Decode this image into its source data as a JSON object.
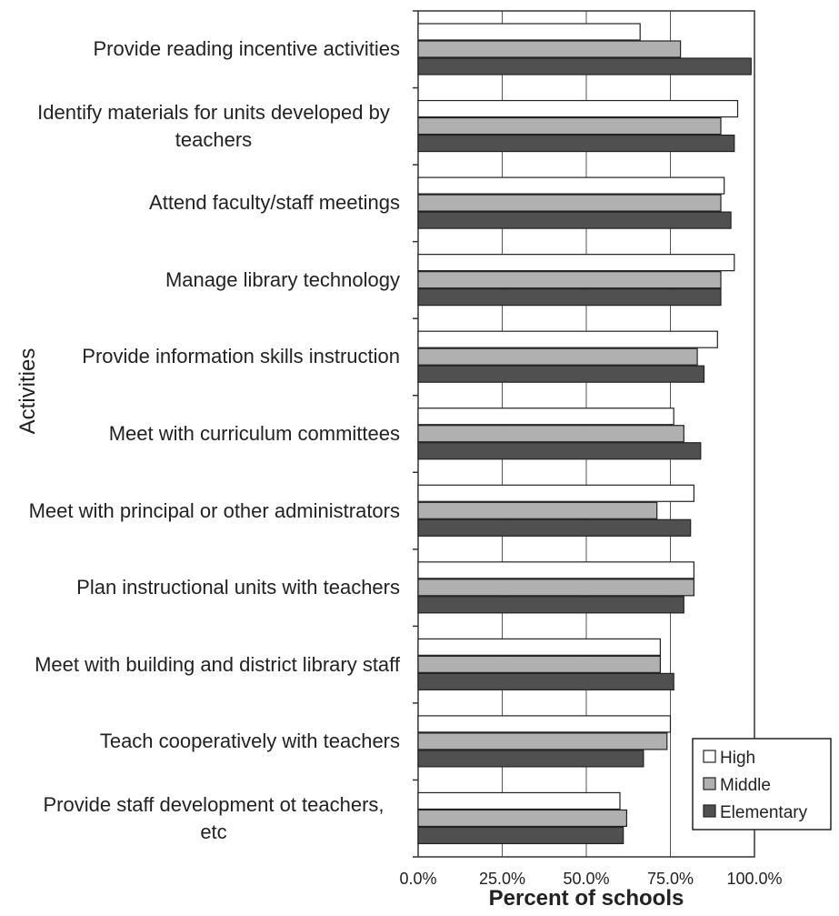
{
  "chart_data": {
    "type": "hbar",
    "x_label": "Percent of schools",
    "y_label": "Activities",
    "categories": [
      "Provide reading incentive activities",
      "Identify materials for units developed by teachers",
      "Attend faculty/staff meetings",
      "Manage library technology",
      "Provide information skills instruction",
      "Meet with curriculum committees",
      "Meet with principal or other administrators",
      "Plan instructional units with teachers",
      "Meet with building and district library staff",
      "Teach cooperatively with teachers",
      "Provide staff development ot teachers, etc"
    ],
    "series": [
      {
        "name": "High",
        "color": "#ffffff",
        "values": [
          66,
          95,
          91,
          94,
          89,
          76,
          82,
          82,
          72,
          75,
          60
        ]
      },
      {
        "name": "Middle",
        "color": "#b0b0b0",
        "values": [
          78,
          90,
          90,
          90,
          83,
          79,
          71,
          82,
          72,
          74,
          62
        ]
      },
      {
        "name": "Elementary",
        "color": "#505050",
        "values": [
          99,
          94,
          93,
          90,
          85,
          84,
          81,
          79,
          76,
          67,
          61
        ]
      }
    ],
    "xlim": [
      0,
      100
    ],
    "xticks": [
      {
        "value": 0,
        "label": "0.0%"
      },
      {
        "value": 25,
        "label": "25.0%"
      },
      {
        "value": 50,
        "label": "50.0%"
      },
      {
        "value": 75,
        "label": "75.0%"
      },
      {
        "value": 100,
        "label": "100.0%"
      }
    ],
    "grid": true,
    "legend": "lower right"
  }
}
